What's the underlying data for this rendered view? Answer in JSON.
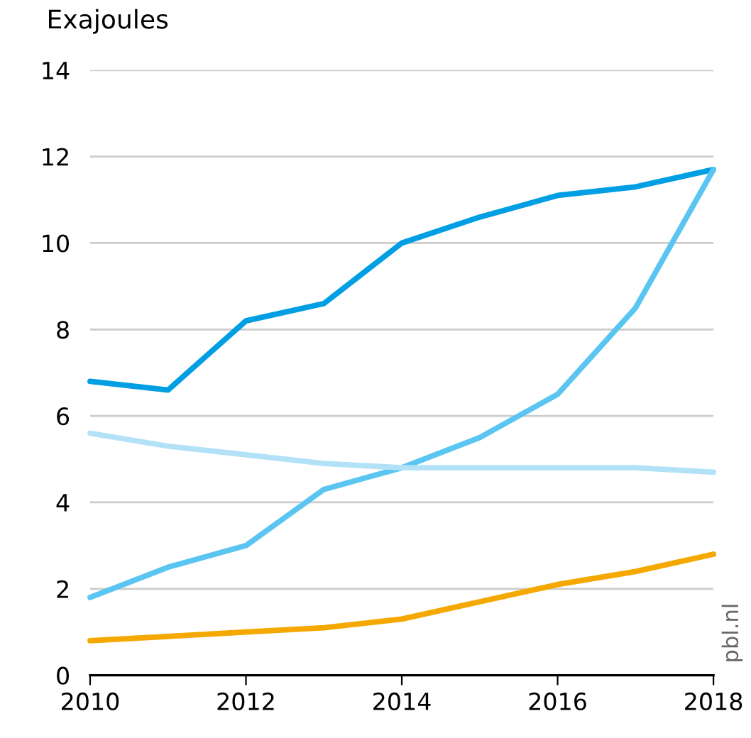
{
  "chart_data": {
    "type": "line",
    "ylabel": "Exajoules",
    "x": [
      2010,
      2011,
      2012,
      2013,
      2014,
      2015,
      2016,
      2017,
      2018
    ],
    "series": [
      {
        "color": "#009fe3",
        "values": [
          6.8,
          6.6,
          8.2,
          8.6,
          10.0,
          10.6,
          11.1,
          11.3,
          11.7
        ]
      },
      {
        "color": "#5bc5f2",
        "values": [
          1.8,
          2.5,
          3.0,
          4.3,
          4.8,
          5.5,
          6.5,
          8.5,
          11.7
        ]
      },
      {
        "color": "#b3e2f8",
        "values": [
          5.6,
          5.3,
          5.1,
          4.9,
          4.8,
          4.8,
          4.8,
          4.8,
          4.7
        ]
      },
      {
        "color": "#f5a800",
        "values": [
          0.8,
          0.9,
          1.0,
          1.1,
          1.3,
          1.7,
          2.1,
          2.4,
          2.8
        ]
      }
    ],
    "xlim": [
      2010,
      2018
    ],
    "xticks": [
      2010,
      2012,
      2014,
      2016,
      2018
    ],
    "ylim": [
      0,
      14
    ],
    "yticks": [
      0,
      2,
      4,
      6,
      8,
      10,
      12,
      14
    ],
    "grid": "y",
    "legend": false,
    "annotations": [
      "pbl.nl"
    ]
  }
}
